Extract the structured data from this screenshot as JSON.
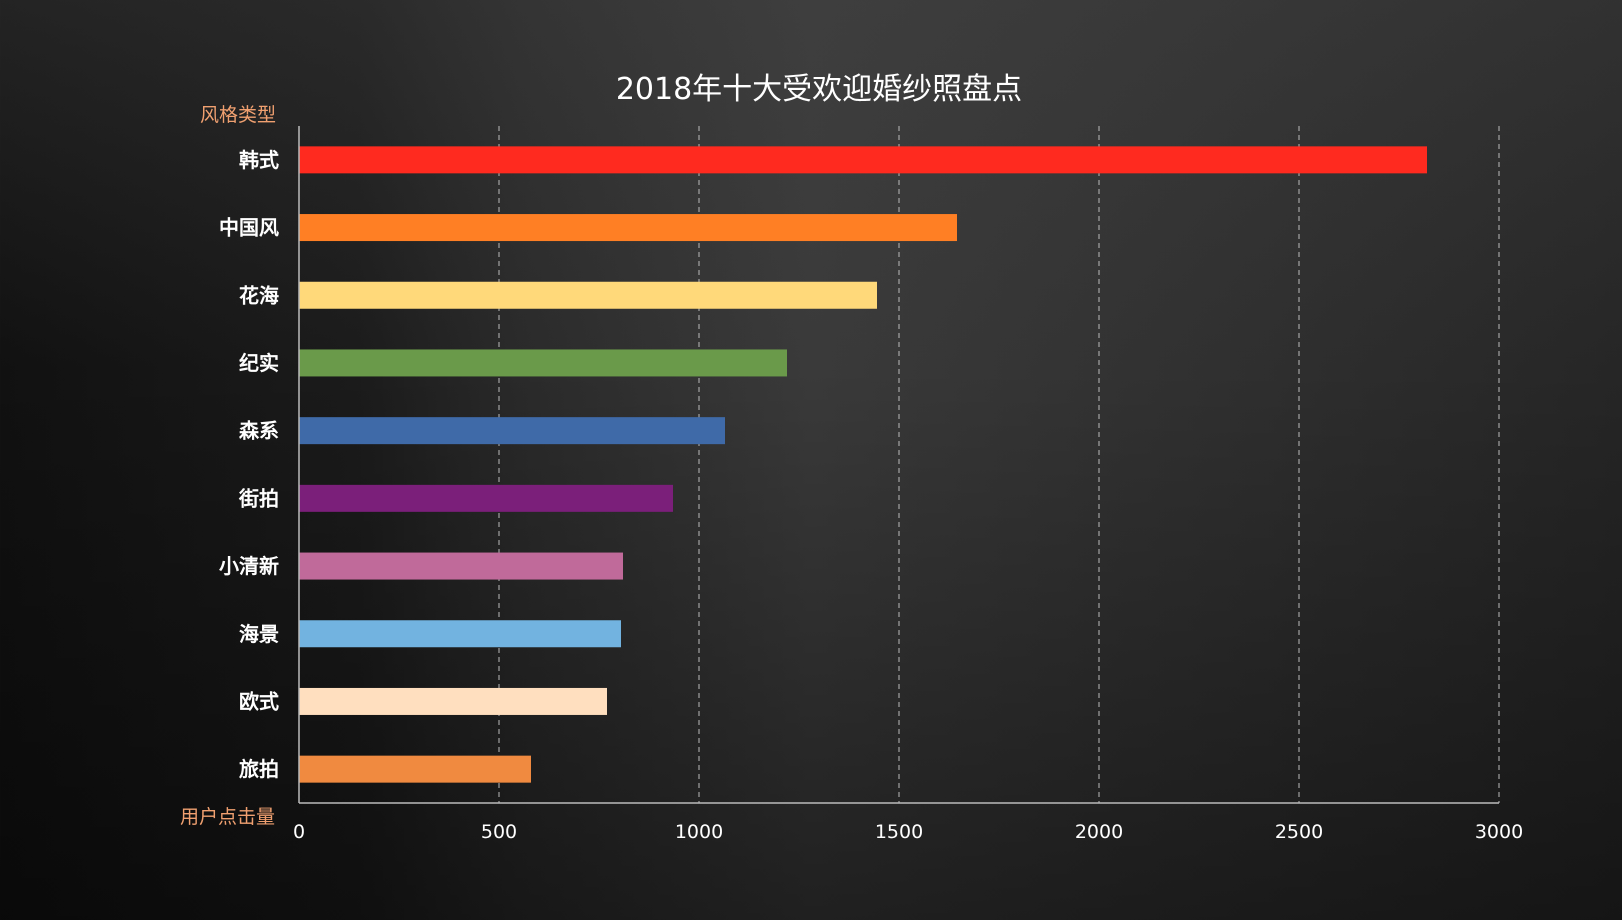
{
  "chart_data": {
    "type": "bar",
    "orientation": "horizontal",
    "title": "2018年十大受欢迎婚纱照盘点",
    "ylabel": "风格类型",
    "xlabel": "用户点击量",
    "categories": [
      "韩式",
      "中国风",
      "花海",
      "纪实",
      "森系",
      "街拍",
      "小清新",
      "海景",
      "欧式",
      "旅拍"
    ],
    "values": [
      2820,
      1645,
      1445,
      1220,
      1065,
      935,
      810,
      805,
      770,
      580
    ],
    "colors": [
      "#ff2a1f",
      "#ff7f24",
      "#ffd97a",
      "#6a9a4a",
      "#3f6aa8",
      "#7b1f7a",
      "#c06a9a",
      "#72b3e0",
      "#ffdfbf",
      "#f08a40"
    ],
    "xlim": [
      0,
      3000
    ],
    "xticks": [
      "0",
      "500",
      "1000",
      "1500",
      "2000",
      "2500",
      "3000"
    ],
    "grid": "vertical dashed"
  }
}
